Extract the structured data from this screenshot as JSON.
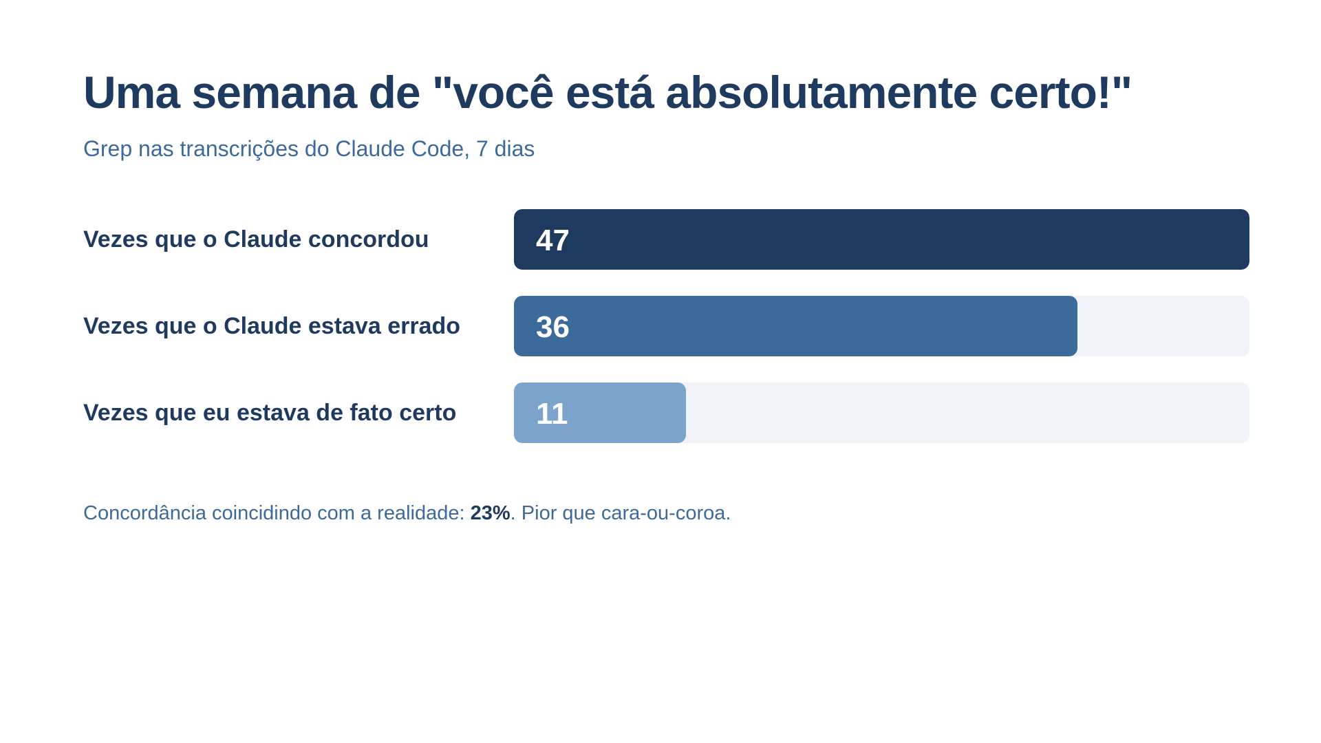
{
  "title": "Uma semana de \"você está absolutamente certo!\"",
  "subtitle": "Grep nas transcrições do Claude Code, 7 dias",
  "chart_data": {
    "type": "bar",
    "orientation": "horizontal",
    "title": "Uma semana de \"você está absolutamente certo!\"",
    "subtitle": "Grep nas transcrições do Claude Code, 7 dias",
    "categories": [
      "Vezes que o Claude concordou",
      "Vezes que o Claude estava errado",
      "Vezes que eu estava de fato certo"
    ],
    "values": [
      47,
      36,
      11
    ],
    "value_labels": [
      "47",
      "36",
      "11"
    ],
    "xlim": [
      0,
      47
    ],
    "colors": [
      "#1f3a5f",
      "#3c6a9a",
      "#7ba3cc"
    ],
    "track_color": "#f0f4f9",
    "grid": false,
    "legend": "none"
  },
  "footnote": {
    "prefix": "Concordância coincidindo com a realidade: ",
    "highlight": "23%",
    "suffix": ". Pior que cara-ou-coroa."
  }
}
